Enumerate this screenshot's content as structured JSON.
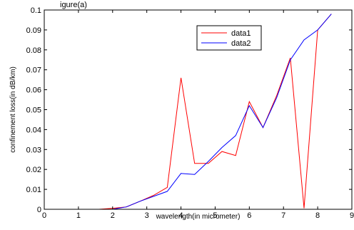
{
  "chart_data": {
    "type": "line",
    "title_fragment": "igure(a)",
    "xlabel": "wavelength(in micrometer)",
    "ylabel": "confinement loss(in dB/km)",
    "xlim": [
      0,
      9
    ],
    "ylim": [
      0,
      0.1
    ],
    "xticks": [
      "0",
      "1",
      "2",
      "3",
      "4",
      "5",
      "6",
      "7",
      "8",
      "9"
    ],
    "yticks": [
      "0",
      "0.01",
      "0.02",
      "0.03",
      "0.04",
      "0.05",
      "0.06",
      "0.07",
      "0.08",
      "0.09",
      "0.1"
    ],
    "grid": false,
    "legend_position": "top-right",
    "series": [
      {
        "name": "data1",
        "color": "#ff0000",
        "x": [
          0.4,
          0.8,
          1.2,
          1.6,
          2.0,
          2.4,
          2.8,
          3.2,
          3.6,
          4.0,
          4.4,
          4.8,
          5.2,
          5.6,
          6.0,
          6.4,
          6.8,
          7.2,
          7.6,
          8.0,
          8.4
        ],
        "y": [
          0,
          0,
          0,
          0,
          0.0005,
          0.0012,
          0.004,
          0.007,
          0.011,
          0.066,
          0.023,
          0.023,
          0.029,
          0.027,
          0.054,
          0.041,
          0.057,
          0.076,
          0.0005,
          0.09,
          0.098
        ]
      },
      {
        "name": "data2",
        "color": "#0000ff",
        "x": [
          0.4,
          0.8,
          1.2,
          1.6,
          2.0,
          2.4,
          2.8,
          3.2,
          3.6,
          4.0,
          4.4,
          4.8,
          5.2,
          5.6,
          6.0,
          6.4,
          6.8,
          7.2,
          7.6,
          8.0,
          8.4
        ],
        "y": [
          0,
          0,
          0,
          0,
          0,
          0.0012,
          0.004,
          0.0065,
          0.009,
          0.018,
          0.0175,
          0.024,
          0.031,
          0.037,
          0.052,
          0.041,
          0.056,
          0.075,
          0.085,
          0.09,
          0.098
        ]
      }
    ]
  }
}
